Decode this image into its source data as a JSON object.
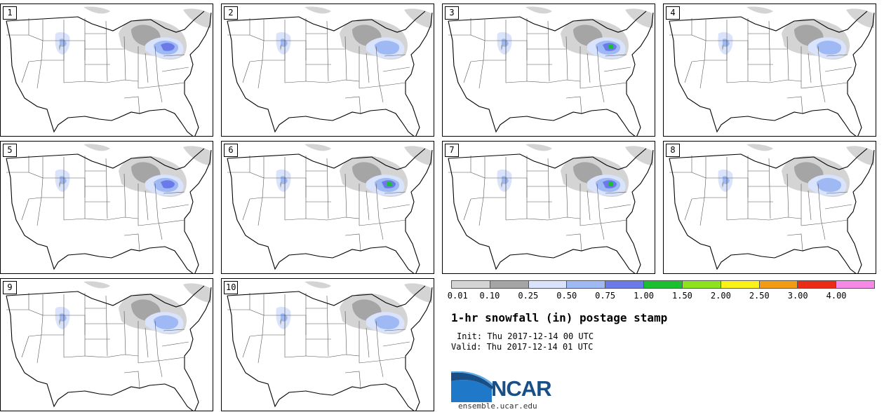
{
  "panels": [
    {
      "label": "1",
      "intensity": "heavy",
      "max_category": "0.75"
    },
    {
      "label": "2",
      "intensity": "moderate",
      "max_category": "0.50"
    },
    {
      "label": "3",
      "intensity": "heavy",
      "max_category": "1.00"
    },
    {
      "label": "4",
      "intensity": "moderate",
      "max_category": "0.75"
    },
    {
      "label": "5",
      "intensity": "heavy",
      "max_category": "0.75"
    },
    {
      "label": "6",
      "intensity": "heavy",
      "max_category": "1.00"
    },
    {
      "label": "7",
      "intensity": "heavy",
      "max_category": "1.00"
    },
    {
      "label": "8",
      "intensity": "moderate",
      "max_category": "0.75"
    },
    {
      "label": "9",
      "intensity": "moderate",
      "max_category": "0.75"
    },
    {
      "label": "10",
      "intensity": "moderate",
      "max_category": "0.75"
    }
  ],
  "colorbar": {
    "colors": [
      "#d4d4d4",
      "#a5a5a5",
      "#d9e3fb",
      "#9fb9f5",
      "#6a7ae8",
      "#1cbf2f",
      "#8fe21e",
      "#fbf21a",
      "#f49b16",
      "#eb2b16",
      "#f48ae6"
    ],
    "tick_labels": [
      "0.01",
      "0.10",
      "0.25",
      "0.50",
      "0.75",
      "1.00",
      "1.50",
      "2.00",
      "2.50",
      "3.00",
      "4.00"
    ]
  },
  "title": "1-hr snowfall (in) postage stamp",
  "init_line": "Init: Thu 2017-12-14 00 UTC",
  "valid_line": "Valid: Thu 2017-12-14 01 UTC",
  "logo": {
    "text": "NCAR",
    "url": "ensemble.ucar.edu"
  },
  "map_colors": {
    "coast": "#000000",
    "states": "#555555",
    "heavy_gray": "#a5a5a5",
    "light_gray": "#d4d4d4"
  }
}
